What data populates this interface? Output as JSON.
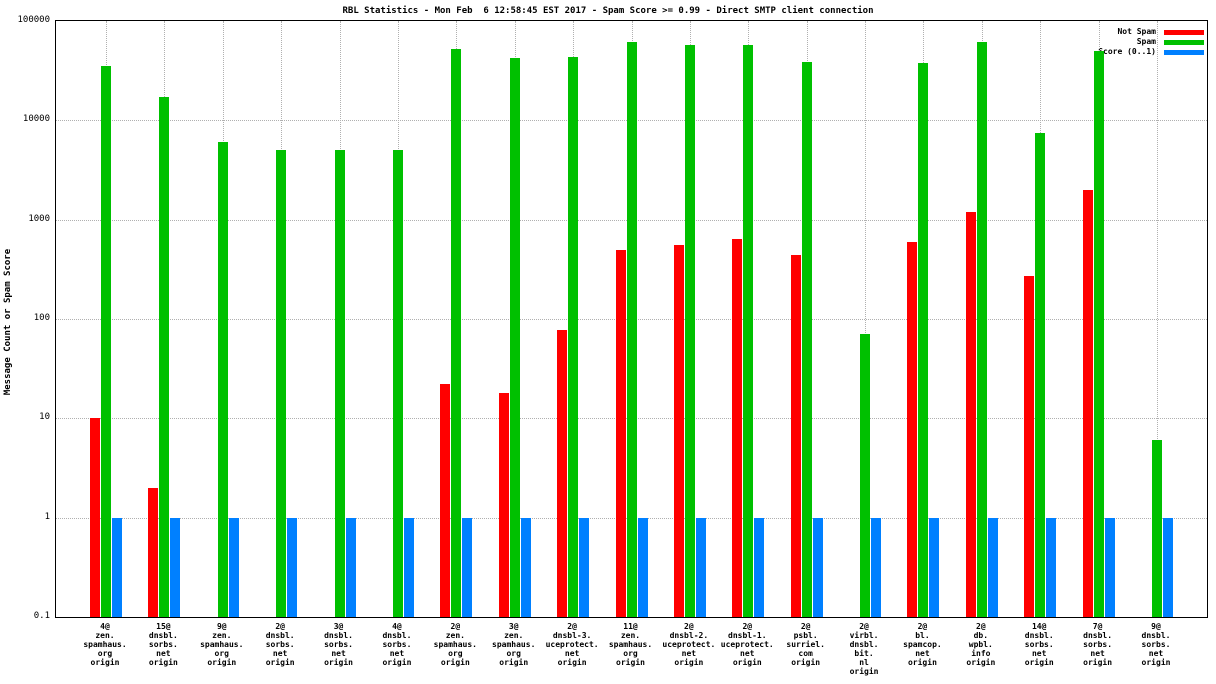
{
  "page": {
    "background": "#ffffff"
  },
  "chart_data": {
    "type": "bar",
    "title": "RBL Statistics - Mon Feb  6 12:58:45 EST 2017 - Spam Score >= 0.99 - Direct SMTP client connection",
    "ylabel": "Message Count or Spam Score",
    "xlabel": "",
    "yscale": "log",
    "ylim": [
      0.1,
      100000
    ],
    "ytick_labels": [
      "0.1",
      "1",
      "10",
      "100",
      "1000",
      "10000",
      "100000"
    ],
    "grid": true,
    "legend_position": "top-right",
    "categories": [
      [
        "4@",
        "zen.",
        "spamhaus.",
        "org",
        "origin"
      ],
      [
        "15@",
        "dnsbl.",
        "sorbs.",
        "net",
        "origin"
      ],
      [
        "9@",
        "zen.",
        "spamhaus.",
        "org",
        "origin"
      ],
      [
        "2@",
        "dnsbl.",
        "sorbs.",
        "net",
        "origin"
      ],
      [
        "3@",
        "dnsbl.",
        "sorbs.",
        "net",
        "origin"
      ],
      [
        "4@",
        "dnsbl.",
        "sorbs.",
        "net",
        "origin"
      ],
      [
        "2@",
        "zen.",
        "spamhaus.",
        "org",
        "origin"
      ],
      [
        "3@",
        "zen.",
        "spamhaus.",
        "org",
        "origin"
      ],
      [
        "2@",
        "dnsbl-3.",
        "uceprotect.",
        "net",
        "origin"
      ],
      [
        "11@",
        "zen.",
        "spamhaus.",
        "org",
        "origin"
      ],
      [
        "2@",
        "dnsbl-2.",
        "uceprotect.",
        "net",
        "origin"
      ],
      [
        "2@",
        "dnsbl-1.",
        "uceprotect.",
        "net",
        "origin"
      ],
      [
        "2@",
        "psbl.",
        "surriel.",
        "com",
        "origin"
      ],
      [
        "2@",
        "virbl.",
        "dnsbl.",
        "bit.",
        "nl",
        "origin"
      ],
      [
        "2@",
        "bl.",
        "spamcop.",
        "net",
        "origin"
      ],
      [
        "2@",
        "db.",
        "wpbl.",
        "info",
        "origin"
      ],
      [
        "14@",
        "dnsbl.",
        "sorbs.",
        "net",
        "origin"
      ],
      [
        "7@",
        "dnsbl.",
        "sorbs.",
        "net",
        "origin"
      ],
      [
        "9@",
        "dnsbl.",
        "sorbs.",
        "net",
        "origin"
      ]
    ],
    "series": [
      {
        "name": "Not Spam",
        "color": "#ff0000",
        "values": [
          10,
          2,
          0,
          0,
          0,
          0,
          22,
          18,
          78,
          500,
          550,
          640,
          440,
          0,
          600,
          1200,
          270,
          2000,
          0
        ]
      },
      {
        "name": "Spam",
        "color": "#00c000",
        "values": [
          35000,
          17000,
          6000,
          5000,
          5000,
          5000,
          52000,
          42000,
          43000,
          61000,
          57000,
          58000,
          39000,
          70,
          38000,
          62000,
          7500,
          50000,
          6
        ]
      },
      {
        "name": "Score (0..1)",
        "color": "#0080ff",
        "values": [
          1,
          1,
          1,
          1,
          1,
          1,
          1,
          1,
          1,
          1,
          1,
          1,
          1,
          1,
          1,
          1,
          1,
          1,
          1
        ]
      }
    ]
  }
}
